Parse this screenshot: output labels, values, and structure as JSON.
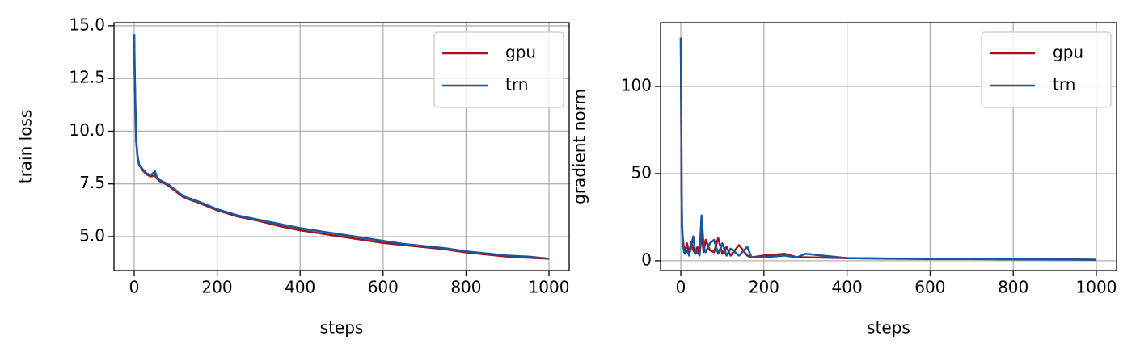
{
  "chart_data": [
    {
      "type": "line",
      "xlabel": "steps",
      "ylabel": "train loss",
      "x": [
        0,
        1,
        3,
        5,
        8,
        12,
        20,
        30,
        40,
        50,
        55,
        60,
        80,
        100,
        120,
        150,
        200,
        250,
        300,
        350,
        400,
        450,
        500,
        550,
        600,
        650,
        700,
        750,
        800,
        850,
        900,
        950,
        1000
      ],
      "series": [
        {
          "name": "gpu",
          "color": "#a6121c",
          "values": [
            14.6,
            13.0,
            11.0,
            9.5,
            8.8,
            8.4,
            8.15,
            7.95,
            7.85,
            7.9,
            7.75,
            7.65,
            7.45,
            7.15,
            6.85,
            6.65,
            6.25,
            5.95,
            5.75,
            5.5,
            5.3,
            5.15,
            5.0,
            4.85,
            4.7,
            4.6,
            4.5,
            4.4,
            4.25,
            4.15,
            4.05,
            4.0,
            3.95
          ]
        },
        {
          "name": "trn",
          "color": "#1557a0",
          "values": [
            14.6,
            13.0,
            11.0,
            9.5,
            8.8,
            8.4,
            8.2,
            8.0,
            7.9,
            8.1,
            7.8,
            7.7,
            7.5,
            7.2,
            6.9,
            6.7,
            6.3,
            6.0,
            5.8,
            5.6,
            5.4,
            5.25,
            5.1,
            4.95,
            4.8,
            4.65,
            4.55,
            4.45,
            4.3,
            4.2,
            4.1,
            4.05,
            3.95
          ]
        }
      ],
      "xlim": [
        -48.7,
        1048.7
      ],
      "ylim": [
        3.39,
        15.15
      ],
      "xticks": [
        0,
        200,
        400,
        600,
        800,
        1000
      ],
      "yticks": [
        {
          "value": 5,
          "label": "5.0"
        },
        {
          "value": 7.5,
          "label": "7.5"
        },
        {
          "value": 10,
          "label": "10.0"
        },
        {
          "value": 12.5,
          "label": "12.5"
        },
        {
          "value": 15,
          "label": "15.0"
        }
      ],
      "grid": true,
      "legend": "upper right"
    },
    {
      "type": "line",
      "xlabel": "steps",
      "ylabel": "gradient norm",
      "x": [
        0,
        1,
        2,
        3,
        5,
        8,
        10,
        15,
        20,
        25,
        30,
        35,
        40,
        45,
        50,
        55,
        60,
        70,
        80,
        90,
        100,
        110,
        120,
        140,
        160,
        170,
        200,
        250,
        280,
        300,
        400,
        500,
        600,
        700,
        800,
        900,
        1000
      ],
      "series": [
        {
          "name": "gpu",
          "color": "#a6121c",
          "values": [
            128,
            90,
            40,
            20,
            12,
            7,
            5,
            10,
            4,
            11,
            6,
            4,
            8,
            3,
            15,
            5,
            12,
            6,
            5,
            13,
            4,
            8,
            3,
            9,
            3,
            2,
            3,
            4,
            2,
            2,
            1.5,
            1.3,
            1.2,
            1,
            1,
            0.9,
            0.6
          ]
        },
        {
          "name": "trn",
          "color": "#1557a0",
          "values": [
            128,
            90,
            40,
            20,
            10,
            5,
            4,
            6,
            3,
            8,
            14,
            4,
            5,
            3,
            26,
            8,
            5,
            10,
            12,
            4,
            10,
            3,
            7,
            3,
            8,
            2,
            2,
            3,
            2,
            4,
            1.5,
            1.2,
            1,
            1,
            0.8,
            0.7,
            0.6
          ]
        }
      ],
      "xlim": [
        -48.7,
        1048.7
      ],
      "ylim": [
        -5.6,
        136.6
      ],
      "xticks": [
        0,
        200,
        400,
        600,
        800,
        1000
      ],
      "yticks": [
        0,
        50,
        100
      ],
      "grid": true,
      "legend": "upper right"
    }
  ]
}
